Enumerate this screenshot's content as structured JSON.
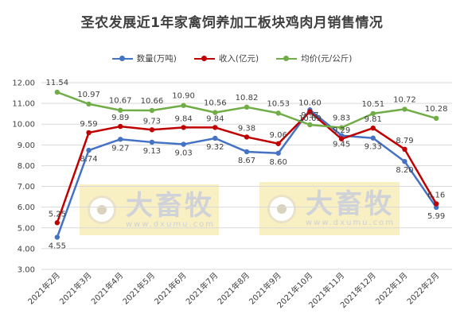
{
  "chart_data": {
    "type": "line",
    "title": "圣农发展近1年家禽饲养加工板块鸡肉月销售情况",
    "categories": [
      "2021年2月",
      "2021年3月",
      "2021年4月",
      "2021年5月",
      "2021年6月",
      "2021年7月",
      "2021年8月",
      "2021年9月",
      "2021年10月",
      "2021年11月",
      "2021年12月",
      "2022年1月",
      "2022年2月"
    ],
    "series": [
      {
        "name": "数量(万吨)",
        "color": "#4472c4",
        "values": [
          4.55,
          8.74,
          9.27,
          9.13,
          9.03,
          9.32,
          8.67,
          8.6,
          10.69,
          9.45,
          9.33,
          8.2,
          5.99
        ]
      },
      {
        "name": "收入(亿元)",
        "color": "#c00000",
        "values": [
          5.25,
          9.59,
          9.89,
          9.73,
          9.84,
          9.84,
          9.38,
          9.06,
          10.6,
          9.29,
          9.81,
          8.79,
          6.16
        ]
      },
      {
        "name": "均价(元/公斤)",
        "color": "#70ad47",
        "values": [
          11.54,
          10.97,
          10.67,
          10.66,
          10.9,
          10.56,
          10.82,
          10.53,
          9.97,
          9.83,
          10.51,
          10.72,
          10.28
        ]
      }
    ],
    "ylim": [
      3.0,
      12.0
    ],
    "yticks": [
      "3.00",
      "4.00",
      "5.00",
      "6.00",
      "7.00",
      "8.00",
      "9.00",
      "10.00",
      "11.00",
      "12.00"
    ],
    "grid": true,
    "legend_position": "top"
  },
  "watermark": {
    "brand": "大畜牧",
    "url": "www.dxumu.com"
  }
}
